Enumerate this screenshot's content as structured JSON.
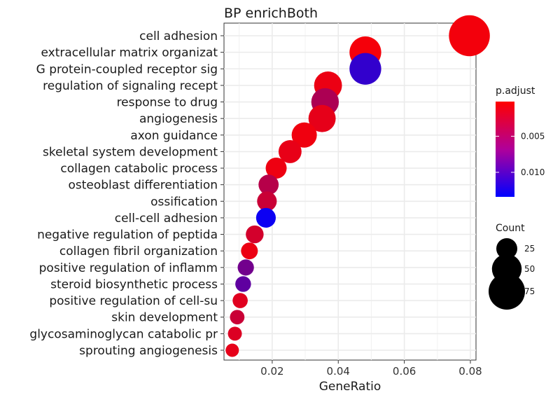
{
  "chart_data": {
    "type": "scatter",
    "title": "BP enrichBoth",
    "xlabel": "GeneRatio",
    "ylabel": "",
    "xlim": [
      0.0054,
      0.0817
    ],
    "xticks": [
      0.02,
      0.04,
      0.06,
      0.08
    ],
    "xtick_labels": [
      "0.02",
      "0.04",
      "0.06",
      "0.08"
    ],
    "grid": true,
    "categories": [
      "cell adhesion",
      "extracellular matrix organizat",
      "G protein-coupled receptor sig",
      "regulation of signaling recept",
      "response to drug",
      "angiogenesis",
      "axon guidance",
      "skeletal system development",
      "collagen catabolic process",
      "osteoblast differentiation",
      "ossification",
      "cell-cell adhesion",
      "negative regulation of peptida",
      "collagen fibril organization",
      "positive regulation of inflamm",
      "steroid biosynthetic process",
      "positive regulation of cell-su",
      "skin development",
      "glycosaminoglycan catabolic pr",
      "sprouting angiogenesis"
    ],
    "gene_ratio": [
      0.0797,
      0.0482,
      0.0482,
      0.0369,
      0.036,
      0.0351,
      0.0297,
      0.0254,
      0.0212,
      0.0189,
      0.0184,
      0.0181,
      0.0147,
      0.0131,
      0.012,
      0.0112,
      0.0103,
      0.0094,
      0.0087,
      0.0079
    ],
    "count": [
      95,
      57,
      57,
      44,
      43,
      42,
      36,
      30,
      25,
      23,
      22,
      22,
      18,
      16,
      15,
      14,
      13,
      12,
      11,
      10
    ],
    "p_adjust": [
      0.0008,
      0.0007,
      0.0108,
      0.0012,
      0.0045,
      0.0015,
      0.001,
      0.0014,
      0.0011,
      0.004,
      0.003,
      0.0128,
      0.0025,
      0.0012,
      0.0075,
      0.0085,
      0.0018,
      0.003,
      0.002,
      0.0015
    ],
    "legend": {
      "color": {
        "title": "p.adjust",
        "range": [
          0.0002,
          0.0134
        ],
        "ticks": [
          0.005,
          0.01
        ],
        "tick_labels": [
          "0.005",
          "0.010"
        ],
        "low_color": "#ff0000",
        "high_color": "#0000ff"
      },
      "size": {
        "title": "Count",
        "values": [
          25,
          50,
          75
        ],
        "labels": [
          "25",
          "50",
          "75"
        ]
      },
      "placement": "right"
    }
  }
}
